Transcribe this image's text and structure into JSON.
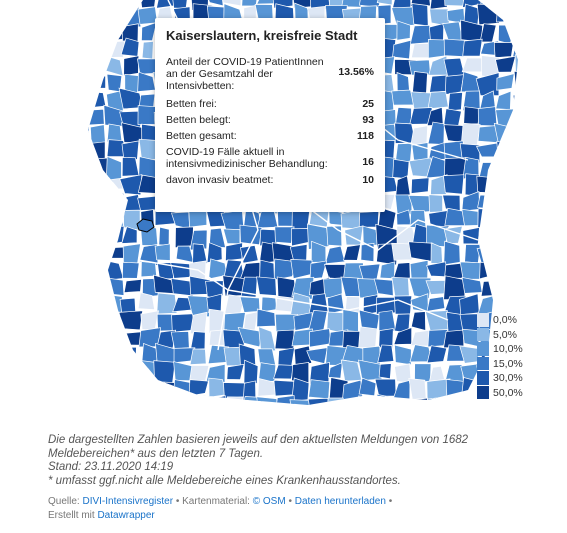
{
  "tooltip": {
    "title": "Kaiserslautern, kreisfreie Stadt",
    "rows": [
      {
        "label": "Anteil der COVID-19 PatientInnen an der Gesamtzahl der Intensivbetten:",
        "value": "13.56%"
      },
      {
        "label": "Betten frei:",
        "value": "25"
      },
      {
        "label": "Betten belegt:",
        "value": "93"
      },
      {
        "label": "Betten gesamt:",
        "value": "118"
      },
      {
        "label": "COVID-19 Fälle aktuell in intensivmedizinischer Behandlung:",
        "value": "16"
      },
      {
        "label": "davon invasiv beatmet:",
        "value": "10"
      }
    ]
  },
  "legend": {
    "items": [
      {
        "label": "0,0%",
        "color": "#dde7f5"
      },
      {
        "label": "5,0%",
        "color": "#8ab8e6"
      },
      {
        "label": "10,0%",
        "color": "#5896d6"
      },
      {
        "label": "15,0%",
        "color": "#3a79c6"
      },
      {
        "label": "30,0%",
        "color": "#1e59ad"
      },
      {
        "label": "50,0%",
        "color": "#0d3d8c"
      }
    ]
  },
  "notes": {
    "line1": "Die dargestellten Zahlen basieren jeweils auf den aktuellsten Meldungen von 1682 Meldebereichen* aus den letzten 7 Tagen.",
    "line2": "Stand: 23.11.2020 14:19",
    "line3": "* umfasst ggf.nicht alle Meldebereiche eines Krankenhausstandortes."
  },
  "source": {
    "quelle_label": "Quelle:",
    "quelle_link": "DIVI-Intensivregister",
    "sep1": "•",
    "karten_label": "Kartenmaterial:",
    "osm_link": "© OSM",
    "sep2": "•",
    "download_link": "Daten herunterladen",
    "sep3": "•",
    "created_label": "Erstellt mit",
    "datawrapper_link": "Datawrapper"
  },
  "map": {
    "state_border_color": "#ffffff",
    "district_border_color": "#ffffff",
    "background": "#ffffff"
  }
}
